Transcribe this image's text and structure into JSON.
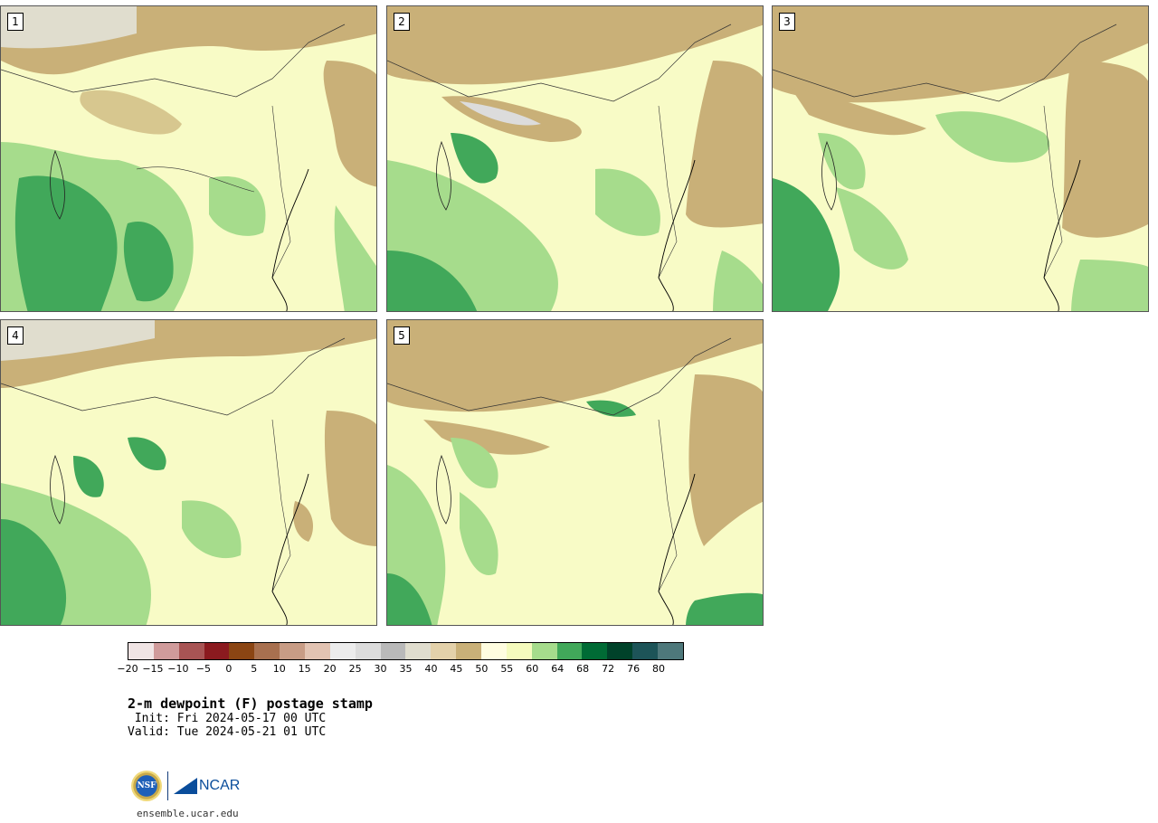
{
  "panels": [
    {
      "label": "1"
    },
    {
      "label": "2"
    },
    {
      "label": "3"
    },
    {
      "label": "4"
    },
    {
      "label": "5"
    }
  ],
  "legend": {
    "colors": [
      "#f0e4e4",
      "#d09b9b",
      "#a85454",
      "#8b1a1f",
      "#8b4513",
      "#a8704f",
      "#c89c85",
      "#e2c3b2",
      "#ececec",
      "#dcdcdc",
      "#b9b9b9",
      "#e0ddce",
      "#e3d1aa",
      "#c9b078",
      "#fffde0",
      "#f5fbbd",
      "#a6dc8c",
      "#41a85a",
      "#006b35",
      "#00422a",
      "#1d5458",
      "#4e787b"
    ],
    "ticks": [
      "−20",
      "−15",
      "−10",
      "−5",
      "0",
      "5",
      "10",
      "15",
      "20",
      "25",
      "30",
      "35",
      "40",
      "45",
      "50",
      "55",
      "60",
      "64",
      "68",
      "72",
      "76",
      "80"
    ]
  },
  "title": "2-m dewpoint (F) postage stamp",
  "init": " Init: Fri 2024-05-17 00 UTC",
  "valid": "Valid: Tue 2024-05-21 01 UTC",
  "logo": {
    "nsf": "NSF",
    "ncar": "NCAR"
  },
  "url": "ensemble.ucar.edu"
}
